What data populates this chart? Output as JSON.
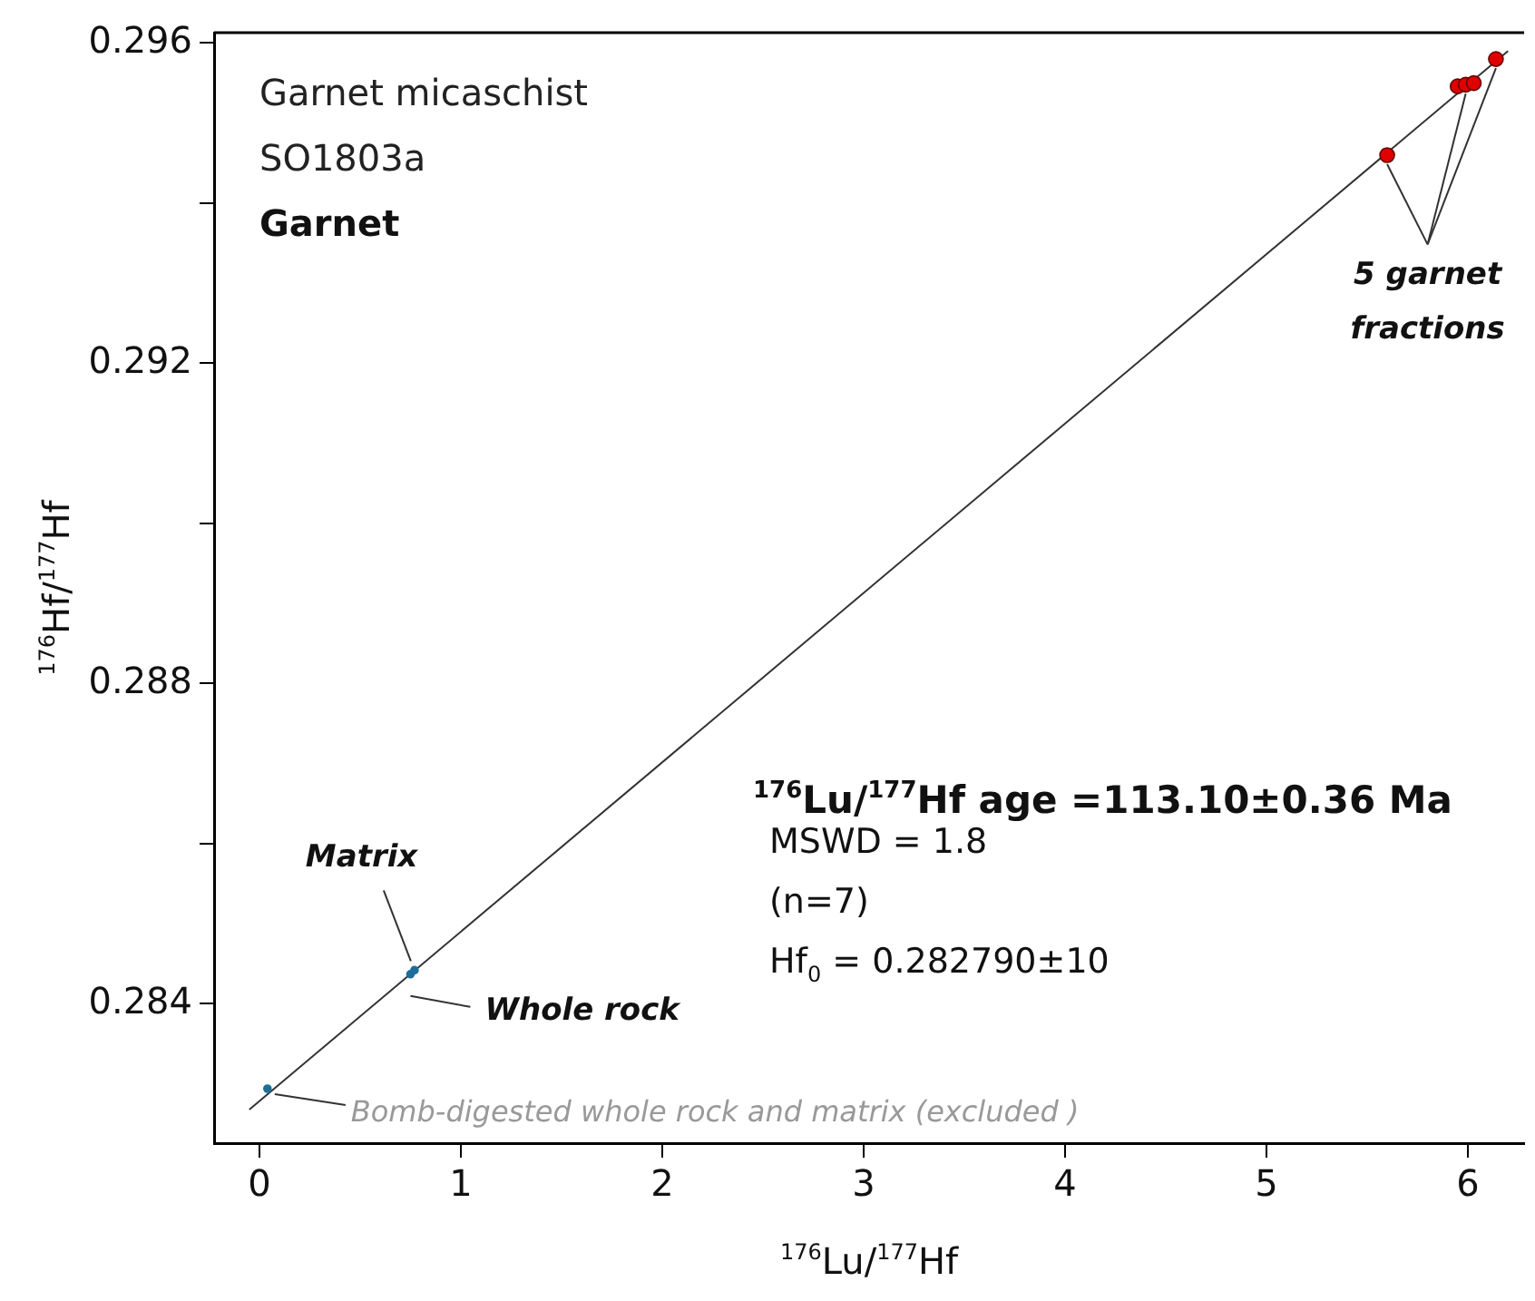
{
  "chart_data": {
    "type": "scatter",
    "title": "Garnet micaschist",
    "subtitle": "SO1803a",
    "xlabel": "$^{176}$Lu/$^{177}$Hf",
    "ylabel": "$^{176}$Hf/$^{177}$Hf",
    "xlim": [
      -0.225,
      6.28
    ],
    "ylim": [
      0.28226,
      0.29613
    ],
    "xticks": [
      0,
      1,
      2,
      3,
      4,
      5,
      6
    ],
    "yticks": [
      0.284,
      {
        "value": 0.286,
        "label": null
      },
      0.288,
      {
        "value": 0.29,
        "label": null
      },
      0.292,
      {
        "value": 0.294,
        "label": null
      },
      0.296
    ],
    "grid": false,
    "legend": false,
    "marker": "circle",
    "series": [
      {
        "type": "line",
        "marker": "none",
        "color": "#333333",
        "x": [
          -0.05,
          6.2
        ],
        "values": [
          0.28268,
          0.2959
        ]
      },
      {
        "type": "scatter",
        "color": "#1f6e9a",
        "x": [
          0.04
        ],
        "values": [
          0.28294
        ]
      },
      {
        "type": "scatter",
        "color": "#1f6e9a",
        "x": [
          0.77,
          0.75
        ],
        "values": [
          0.28442,
          0.28437
        ]
      },
      {
        "type": "scatter",
        "color": "#e00000",
        "x": [
          5.6,
          5.95,
          5.99,
          6.03,
          6.14
        ],
        "values": [
          0.2946,
          0.29546,
          0.29548,
          0.2955,
          0.2958
        ]
      }
    ],
    "annotations": [
      "Garnet",
      "$^{176}$Lu/$^{177}$Hf age =113.10±0.36 Ma",
      "MSWD = 1.8",
      "(n=7)",
      "Hf$_{0}$ = 0.282790±10",
      {
        "text": "Matrix",
        "x": 0.77,
        "y": 0.28442
      },
      {
        "text": "Whole rock",
        "x": 0.75,
        "y": 0.28437
      },
      {
        "text": "Bomb-digested whole rock and matrix (excluded )",
        "x": 0.04,
        "y": 0.28294
      },
      {
        "text": "5 garnet fractions",
        "x": 5.99,
        "y": 0.29548
      }
    ]
  }
}
